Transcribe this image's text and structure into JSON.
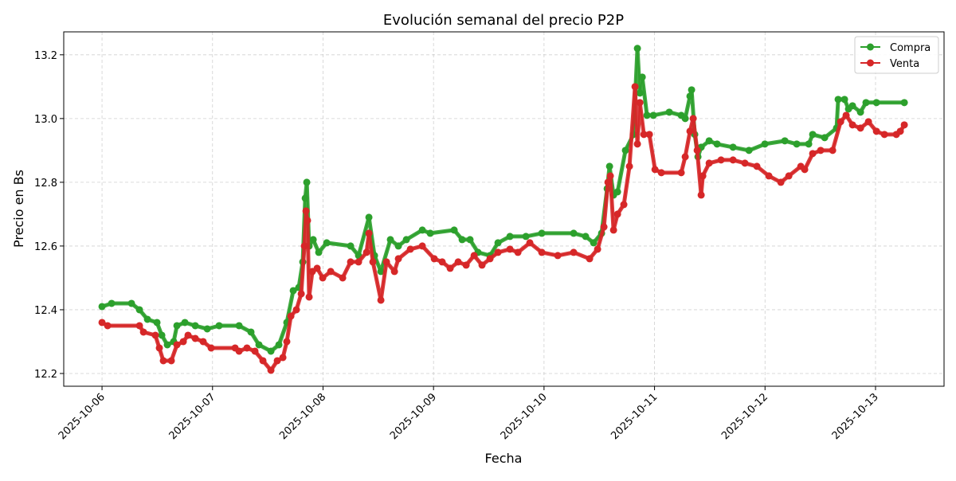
{
  "chart_data": {
    "type": "line",
    "title": "Evolución semanal del precio P2P",
    "xlabel": "Fecha",
    "ylabel": "Precio en Bs",
    "x_ticks": [
      "2025-10-06",
      "2025-10-07",
      "2025-10-08",
      "2025-10-09",
      "2025-10-10",
      "2025-10-11",
      "2025-10-12",
      "2025-10-13"
    ],
    "y_ticks": [
      12.2,
      12.4,
      12.6,
      12.8,
      13.0,
      13.2
    ],
    "y_tick_labels": [
      "12.2",
      "12.4",
      "12.6",
      "12.8",
      "13.0",
      "13.2"
    ],
    "xlim": [
      "2025-10-05 15:41",
      "2025-10-13 14:53"
    ],
    "ylim": [
      12.16,
      13.272
    ],
    "grid": true,
    "legend_position": "top-right",
    "series": [
      {
        "name": "Compra",
        "color": "#2ca02c",
        "marker": "circle",
        "points": [
          [
            "2025-10-06 00:00",
            12.41
          ],
          [
            "2025-10-06 02:05",
            12.42
          ],
          [
            "2025-10-06 06:24",
            12.42
          ],
          [
            "2025-10-06 08:08",
            12.4
          ],
          [
            "2025-10-06 09:52",
            12.37
          ],
          [
            "2025-10-06 11:56",
            12.36
          ],
          [
            "2025-10-06 12:59",
            12.32
          ],
          [
            "2025-10-06 14:11",
            12.29
          ],
          [
            "2025-10-06 15:34",
            12.3
          ],
          [
            "2025-10-06 16:16",
            12.35
          ],
          [
            "2025-10-06 18:00",
            12.36
          ],
          [
            "2025-10-06 20:15",
            12.35
          ],
          [
            "2025-10-06 22:51",
            12.34
          ],
          [
            "2025-10-07 01:26",
            12.35
          ],
          [
            "2025-10-07 05:46",
            12.35
          ],
          [
            "2025-10-07 08:21",
            12.33
          ],
          [
            "2025-10-07 10:05",
            12.29
          ],
          [
            "2025-10-07 12:41",
            12.27
          ],
          [
            "2025-10-07 14:25",
            12.29
          ],
          [
            "2025-10-07 16:08",
            12.36
          ],
          [
            "2025-10-07 17:32",
            12.46
          ],
          [
            "2025-10-07 18:44",
            12.47
          ],
          [
            "2025-10-07 19:36",
            12.55
          ],
          [
            "2025-10-07 20:08",
            12.75
          ],
          [
            "2025-10-07 20:28",
            12.8
          ],
          [
            "2025-10-07 20:59",
            12.6
          ],
          [
            "2025-10-07 21:52",
            12.62
          ],
          [
            "2025-10-07 23:04",
            12.58
          ],
          [
            "2025-10-08 00:48",
            12.61
          ],
          [
            "2025-10-08 05:59",
            12.6
          ],
          [
            "2025-10-08 07:43",
            12.57
          ],
          [
            "2025-10-08 09:58",
            12.69
          ],
          [
            "2025-10-08 11:11",
            12.57
          ],
          [
            "2025-10-08 12:34",
            12.52
          ],
          [
            "2025-10-08 14:38",
            12.62
          ],
          [
            "2025-10-08 16:22",
            12.6
          ],
          [
            "2025-10-08 18:06",
            12.62
          ],
          [
            "2025-10-08 21:34",
            12.65
          ],
          [
            "2025-10-08 23:17",
            12.64
          ],
          [
            "2025-10-09 04:29",
            12.65
          ],
          [
            "2025-10-09 06:13",
            12.62
          ],
          [
            "2025-10-09 07:56",
            12.62
          ],
          [
            "2025-10-09 09:40",
            12.58
          ],
          [
            "2025-10-09 12:16",
            12.57
          ],
          [
            "2025-10-09 14:00",
            12.61
          ],
          [
            "2025-10-09 16:36",
            12.63
          ],
          [
            "2025-10-09 20:04",
            12.63
          ],
          [
            "2025-10-09 23:31",
            12.64
          ],
          [
            "2025-10-10 06:26",
            12.64
          ],
          [
            "2025-10-10 09:02",
            12.63
          ],
          [
            "2025-10-10 10:46",
            12.61
          ],
          [
            "2025-10-10 12:30",
            12.64
          ],
          [
            "2025-10-10 13:43",
            12.78
          ],
          [
            "2025-10-10 14:14",
            12.85
          ],
          [
            "2025-10-10 15:06",
            12.76
          ],
          [
            "2025-10-10 15:58",
            12.77
          ],
          [
            "2025-10-10 17:41",
            12.9
          ],
          [
            "2025-10-10 19:25",
            12.95
          ],
          [
            "2025-10-10 20:17",
            13.22
          ],
          [
            "2025-10-10 20:49",
            13.08
          ],
          [
            "2025-10-10 21:20",
            13.13
          ],
          [
            "2025-10-10 22:22",
            13.01
          ],
          [
            "2025-10-10 23:45",
            13.01
          ],
          [
            "2025-10-11 03:12",
            13.02
          ],
          [
            "2025-10-11 05:48",
            13.01
          ],
          [
            "2025-10-11 06:40",
            13.0
          ],
          [
            "2025-10-11 07:42",
            13.07
          ],
          [
            "2025-10-11 08:03",
            13.09
          ],
          [
            "2025-10-11 08:44",
            12.95
          ],
          [
            "2025-10-11 09:26",
            12.88
          ],
          [
            "2025-10-11 10:08",
            12.91
          ],
          [
            "2025-10-11 11:52",
            12.93
          ],
          [
            "2025-10-11 13:35",
            12.92
          ],
          [
            "2025-10-11 17:03",
            12.91
          ],
          [
            "2025-10-11 20:31",
            12.9
          ],
          [
            "2025-10-11 23:58",
            12.92
          ],
          [
            "2025-10-12 04:18",
            12.93
          ],
          [
            "2025-10-12 06:53",
            12.92
          ],
          [
            "2025-10-12 09:29",
            12.92
          ],
          [
            "2025-10-12 10:21",
            12.95
          ],
          [
            "2025-10-12 12:57",
            12.94
          ],
          [
            "2025-10-12 15:32",
            12.97
          ],
          [
            "2025-10-12 15:53",
            13.06
          ],
          [
            "2025-10-12 17:16",
            13.06
          ],
          [
            "2025-10-12 18:08",
            13.03
          ],
          [
            "2025-10-12 19:00",
            13.04
          ],
          [
            "2025-10-12 20:44",
            13.02
          ],
          [
            "2025-10-12 21:56",
            13.05
          ],
          [
            "2025-10-13 00:12",
            13.05
          ],
          [
            "2025-10-13 06:15",
            13.05
          ]
        ]
      },
      {
        "name": "Venta",
        "color": "#d62728",
        "marker": "circle",
        "points": [
          [
            "2025-10-06 00:00",
            12.36
          ],
          [
            "2025-10-06 01:13",
            12.35
          ],
          [
            "2025-10-06 08:08",
            12.35
          ],
          [
            "2025-10-06 09:00",
            12.33
          ],
          [
            "2025-10-06 11:35",
            12.32
          ],
          [
            "2025-10-06 12:27",
            12.28
          ],
          [
            "2025-10-06 13:19",
            12.24
          ],
          [
            "2025-10-06 15:03",
            12.24
          ],
          [
            "2025-10-06 16:16",
            12.29
          ],
          [
            "2025-10-06 17:39",
            12.3
          ],
          [
            "2025-10-06 18:41",
            12.32
          ],
          [
            "2025-10-06 20:15",
            12.31
          ],
          [
            "2025-10-06 21:58",
            12.3
          ],
          [
            "2025-10-06 23:42",
            12.28
          ],
          [
            "2025-10-07 04:54",
            12.28
          ],
          [
            "2025-10-07 05:46",
            12.27
          ],
          [
            "2025-10-07 07:29",
            12.28
          ],
          [
            "2025-10-07 09:13",
            12.27
          ],
          [
            "2025-10-07 10:57",
            12.24
          ],
          [
            "2025-10-07 12:41",
            12.21
          ],
          [
            "2025-10-07 14:04",
            12.24
          ],
          [
            "2025-10-07 15:17",
            12.25
          ],
          [
            "2025-10-07 16:08",
            12.3
          ],
          [
            "2025-10-07 17:01",
            12.38
          ],
          [
            "2025-10-07 18:13",
            12.4
          ],
          [
            "2025-10-07 19:16",
            12.45
          ],
          [
            "2025-10-07 19:57",
            12.6
          ],
          [
            "2025-10-07 20:18",
            12.71
          ],
          [
            "2025-10-07 20:38",
            12.68
          ],
          [
            "2025-10-07 20:59",
            12.44
          ],
          [
            "2025-10-07 21:41",
            12.52
          ],
          [
            "2025-10-07 22:43",
            12.53
          ],
          [
            "2025-10-07 23:56",
            12.5
          ],
          [
            "2025-10-08 01:40",
            12.52
          ],
          [
            "2025-10-08 04:16",
            12.5
          ],
          [
            "2025-10-08 05:59",
            12.55
          ],
          [
            "2025-10-08 07:43",
            12.55
          ],
          [
            "2025-10-08 09:27",
            12.58
          ],
          [
            "2025-10-08 09:58",
            12.64
          ],
          [
            "2025-10-08 10:50",
            12.55
          ],
          [
            "2025-10-08 12:34",
            12.43
          ],
          [
            "2025-10-08 13:47",
            12.55
          ],
          [
            "2025-10-08 15:31",
            12.52
          ],
          [
            "2025-10-08 16:22",
            12.56
          ],
          [
            "2025-10-08 18:58",
            12.59
          ],
          [
            "2025-10-08 21:34",
            12.6
          ],
          [
            "2025-10-09 00:10",
            12.56
          ],
          [
            "2025-10-09 01:53",
            12.55
          ],
          [
            "2025-10-09 03:37",
            12.53
          ],
          [
            "2025-10-09 05:21",
            12.55
          ],
          [
            "2025-10-09 07:05",
            12.54
          ],
          [
            "2025-10-09 08:49",
            12.57
          ],
          [
            "2025-10-09 10:32",
            12.54
          ],
          [
            "2025-10-09 12:16",
            12.56
          ],
          [
            "2025-10-09 14:00",
            12.58
          ],
          [
            "2025-10-09 16:36",
            12.59
          ],
          [
            "2025-10-09 18:20",
            12.58
          ],
          [
            "2025-10-09 20:55",
            12.61
          ],
          [
            "2025-10-09 23:31",
            12.58
          ],
          [
            "2025-10-10 02:59",
            12.57
          ],
          [
            "2025-10-10 06:26",
            12.58
          ],
          [
            "2025-10-10 09:54",
            12.56
          ],
          [
            "2025-10-10 11:38",
            12.59
          ],
          [
            "2025-10-10 13:01",
            12.66
          ],
          [
            "2025-10-10 13:53",
            12.8
          ],
          [
            "2025-10-10 14:24",
            12.82
          ],
          [
            "2025-10-10 15:06",
            12.65
          ],
          [
            "2025-10-10 15:58",
            12.7
          ],
          [
            "2025-10-10 17:20",
            12.73
          ],
          [
            "2025-10-10 18:33",
            12.85
          ],
          [
            "2025-10-10 19:46",
            13.1
          ],
          [
            "2025-10-10 20:17",
            12.92
          ],
          [
            "2025-10-10 20:49",
            13.05
          ],
          [
            "2025-10-10 21:41",
            12.95
          ],
          [
            "2025-10-10 22:53",
            12.95
          ],
          [
            "2025-10-11 00:06",
            12.84
          ],
          [
            "2025-10-11 01:29",
            12.83
          ],
          [
            "2025-10-11 05:48",
            12.83
          ],
          [
            "2025-10-11 06:40",
            12.88
          ],
          [
            "2025-10-11 07:42",
            12.96
          ],
          [
            "2025-10-11 08:24",
            13.0
          ],
          [
            "2025-10-11 09:16",
            12.9
          ],
          [
            "2025-10-11 10:08",
            12.76
          ],
          [
            "2025-10-11 10:29",
            12.82
          ],
          [
            "2025-10-11 11:52",
            12.86
          ],
          [
            "2025-10-11 14:27",
            12.87
          ],
          [
            "2025-10-11 17:03",
            12.87
          ],
          [
            "2025-10-11 19:38",
            12.86
          ],
          [
            "2025-10-11 22:14",
            12.85
          ],
          [
            "2025-10-12 00:50",
            12.82
          ],
          [
            "2025-10-12 03:26",
            12.8
          ],
          [
            "2025-10-12 05:10",
            12.82
          ],
          [
            "2025-10-12 07:46",
            12.85
          ],
          [
            "2025-10-12 08:37",
            12.84
          ],
          [
            "2025-10-12 10:21",
            12.89
          ],
          [
            "2025-10-12 12:05",
            12.9
          ],
          [
            "2025-10-12 14:41",
            12.9
          ],
          [
            "2025-10-12 16:25",
            12.99
          ],
          [
            "2025-10-12 17:37",
            13.01
          ],
          [
            "2025-10-12 19:00",
            12.98
          ],
          [
            "2025-10-12 20:44",
            12.97
          ],
          [
            "2025-10-12 22:28",
            12.99
          ],
          [
            "2025-10-13 00:12",
            12.96
          ],
          [
            "2025-10-13 01:56",
            12.95
          ],
          [
            "2025-10-13 04:31",
            12.95
          ],
          [
            "2025-10-13 05:23",
            12.96
          ],
          [
            "2025-10-13 06:15",
            12.98
          ]
        ]
      }
    ]
  }
}
